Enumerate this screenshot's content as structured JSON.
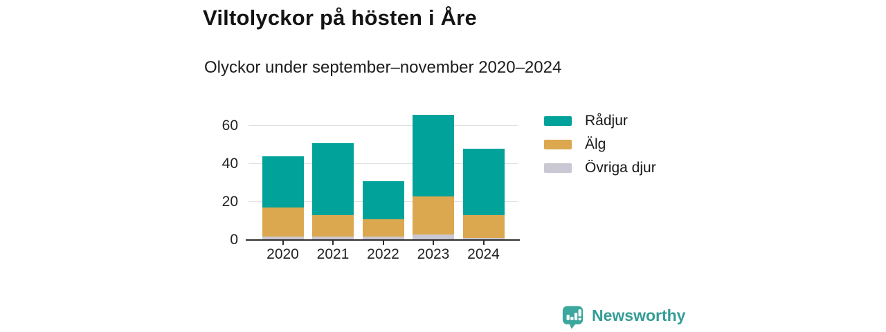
{
  "chart_data": {
    "type": "bar",
    "stacked": true,
    "title": "Viltolyckor på hösten i Åre",
    "subtitle": "Olyckor under september–november 2020–2024",
    "categories": [
      "2020",
      "2021",
      "2022",
      "2023",
      "2024"
    ],
    "series": [
      {
        "name": "Rådjur",
        "color": "#00A29A",
        "values": [
          27,
          38,
          20,
          43,
          35
        ]
      },
      {
        "name": "Älg",
        "color": "#DBA84F",
        "values": [
          15,
          11,
          9,
          20,
          12
        ]
      },
      {
        "name": "Övriga djur",
        "color": "#CAC8D2",
        "values": [
          2,
          2,
          2,
          3,
          1
        ]
      }
    ],
    "stack_order_bottom_to_top": [
      "Övriga djur",
      "Älg",
      "Rådjur"
    ],
    "stack_totals": [
      44,
      51,
      31,
      66,
      48
    ],
    "xlabel": "",
    "ylabel": "",
    "yticks": [
      0,
      20,
      40,
      60
    ],
    "ylim": [
      0,
      70
    ],
    "grid": true,
    "legend_position": "right"
  },
  "footer": {
    "brand": "Newsworthy",
    "brand_color": "#339D96",
    "logo_color": "#3BA79D"
  }
}
